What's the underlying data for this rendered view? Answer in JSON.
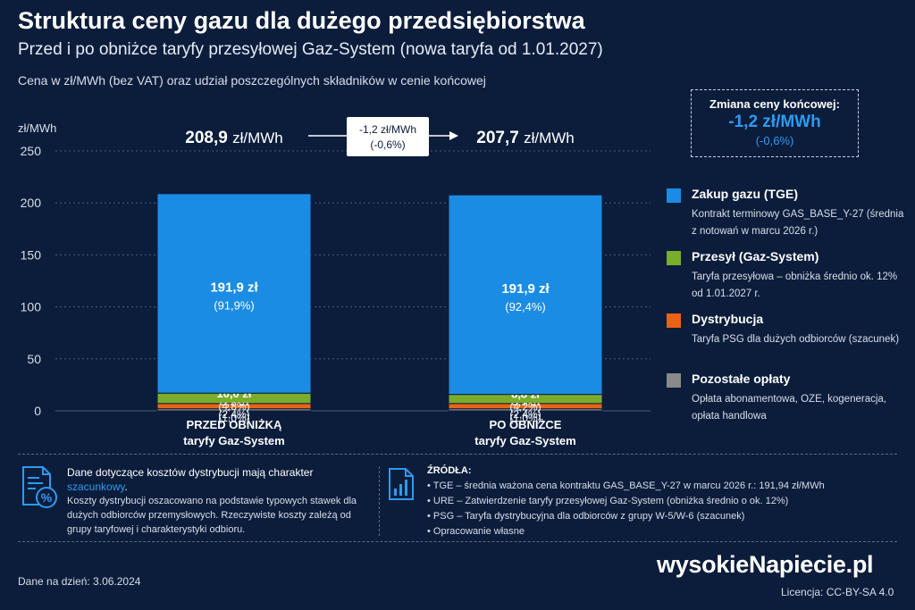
{
  "header": {
    "title": "Struktura ceny gazu dla dużego przedsiębiorstwa",
    "subtitle": "Przed i po obniżce taryfy przesyłowej Gaz-System (nowa taryfa od 1.01.2027)",
    "description": "Cena w zł/MWh (bez VAT) oraz udział poszczególnych składników w cenie końcowej"
  },
  "chart_data": {
    "type": "bar",
    "stacked": true,
    "ylabel": "zł/MWh",
    "ylim": [
      0,
      250
    ],
    "yticks": [
      "0",
      "50",
      "100",
      "150",
      "200",
      "250"
    ],
    "grid": true,
    "categories": [
      "PRZED OBNIŻKĄ\ntaryfy Gaz-System",
      "PO OBNIŻCE\ntaryfy Gaz-System"
    ],
    "totals": [
      "208,9 zł/MWh",
      "207,7 zł/MWh"
    ],
    "totals_parts": [
      {
        "value": "208,9",
        "unit": "zł/MWh"
      },
      {
        "value": "207,7",
        "unit": "zł/MWh"
      }
    ],
    "change_box": {
      "line1": "-1,2 zł/MWh",
      "line2": "(-0,6%)"
    },
    "series": [
      {
        "name": "Pozostałe opłaty",
        "color": "#8a8a8a",
        "values": [
          2.0,
          2.0
        ],
        "labels": [
          "2,0 zł",
          "2,0 zł"
        ],
        "shares": [
          "(1,0%)",
          "(1,0%)"
        ]
      },
      {
        "name": "Dystrybucja",
        "color": "#ea6315",
        "values": [
          5.0,
          5.0
        ],
        "labels": [
          "5,0 zł",
          "5,0 zł"
        ],
        "shares": [
          "(2,4%)",
          "(2,4%)"
        ]
      },
      {
        "name": "Przesył (Gaz-System)",
        "color": "#7aad2c",
        "values": [
          10.0,
          8.8
        ],
        "labels": [
          "10,0 zł",
          "8,8 zł"
        ],
        "shares": [
          "(4,8%)",
          "(4,2%)"
        ]
      },
      {
        "name": "Zakup gazu (TGE)",
        "color": "#1b8ce3",
        "values": [
          191.9,
          191.9
        ],
        "labels": [
          "191,9 zł",
          "191,9 zł"
        ],
        "shares": [
          "(91,9%)",
          "(92,4%)"
        ]
      }
    ]
  },
  "change_panel": {
    "title": "Zmiana ceny końcowej:",
    "value": "-1,2 zł/MWh",
    "percent": "(-0,6%)"
  },
  "legend": [
    {
      "name": "Zakup gazu (TGE)",
      "color": "#1b8ce3",
      "desc": "Kontrakt terminowy GAS_BASE_Y-27 (średnia z notowań w marcu 2026 r.)"
    },
    {
      "name": "Przesył (Gaz-System)",
      "color": "#7aad2c",
      "desc": "Taryfa przesyłowa – obniżka średnio ok. 12% od 1.01.2027 r."
    },
    {
      "name": "Dystrybucja",
      "color": "#ea6315",
      "desc": "Taryfa PSG dla dużych odbiorców (szacunek)"
    },
    {
      "name": "Pozostałe opłaty",
      "color": "#8a8a8a",
      "desc": "Opłata abonamentowa, OZE, kogeneracja, opłata handlowa"
    }
  ],
  "note": {
    "lead_before": "Dane dotyczące kosztów dystrybucji mają charakter ",
    "lead_highlight": "szacunkowy",
    "lead_after": ".",
    "body": "Koszty dystrybucji oszacowano na podstawie typowych stawek dla dużych odbiorców przemysłowych. Rzeczywiste koszty zależą od grupy taryfowej i charakterystyki odbioru."
  },
  "sources": {
    "heading": "ŹRÓDŁA:",
    "items": [
      "TGE – średnia ważona cena kontraktu GAS_BASE_Y-27 w marcu 2026 r.: 191,94 zł/MWh",
      "URE – Zatwierdzenie taryfy przesyłowej Gaz-System (obniżka średnio o ok. 12%)",
      "PSG – Taryfa dystrybucyjna dla odbiorców z grupy W-5/W-6 (szacunek)",
      "Opracowanie własne"
    ]
  },
  "footer": {
    "date": "Dane na dzień: 3.06.2024",
    "brand": "wysokieNapiecie.pl",
    "license": "Licencja: CC-BY-SA 4.0"
  }
}
